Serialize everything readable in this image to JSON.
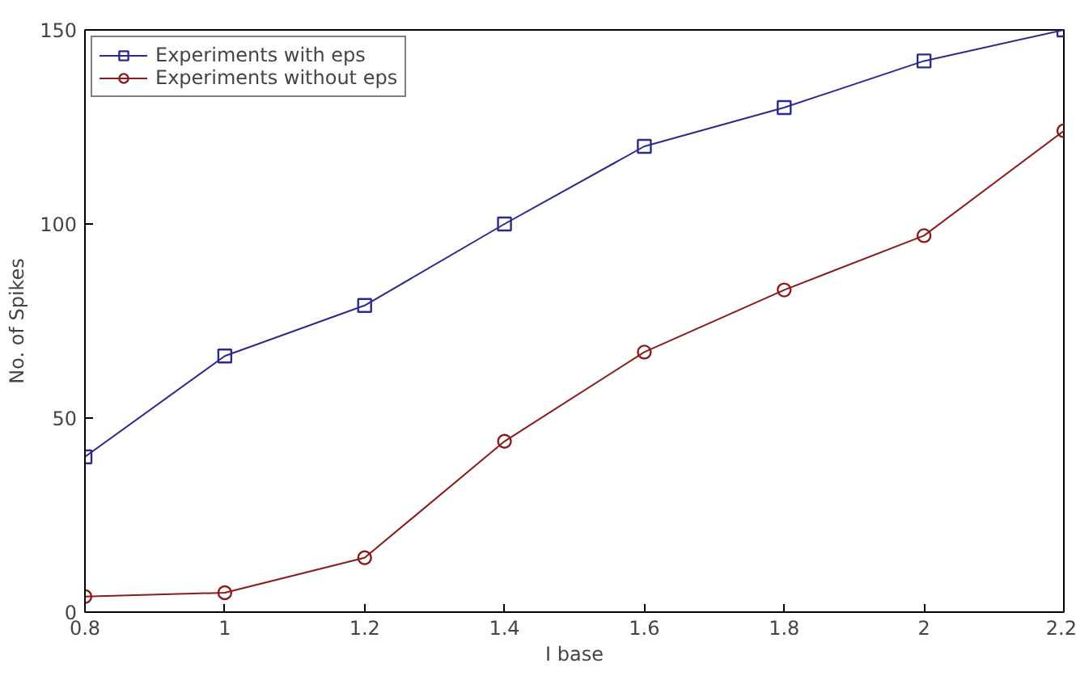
{
  "chart_data": {
    "type": "line",
    "xlabel": "I base",
    "ylabel": "No. of Spikes",
    "x": [
      0.8,
      1.0,
      1.2,
      1.4,
      1.6,
      1.8,
      2.0,
      2.2
    ],
    "series": [
      {
        "name": "Experiments with eps",
        "color": "#2b2b8c",
        "marker": "square",
        "values": [
          40,
          66,
          79,
          100,
          120,
          130,
          142,
          150
        ]
      },
      {
        "name": "Experiments without eps",
        "color": "#8b1a1a",
        "marker": "circle",
        "values": [
          4,
          5,
          14,
          44,
          67,
          83,
          97,
          124
        ]
      }
    ],
    "xlim": [
      0.8,
      2.2
    ],
    "ylim": [
      0,
      150
    ],
    "xticks": [
      0.8,
      1,
      1.2,
      1.4,
      1.6,
      1.8,
      2,
      2.2
    ],
    "yticks": [
      0,
      50,
      100,
      150
    ],
    "grid": false,
    "legend": "top left",
    "line_style": "solid"
  }
}
